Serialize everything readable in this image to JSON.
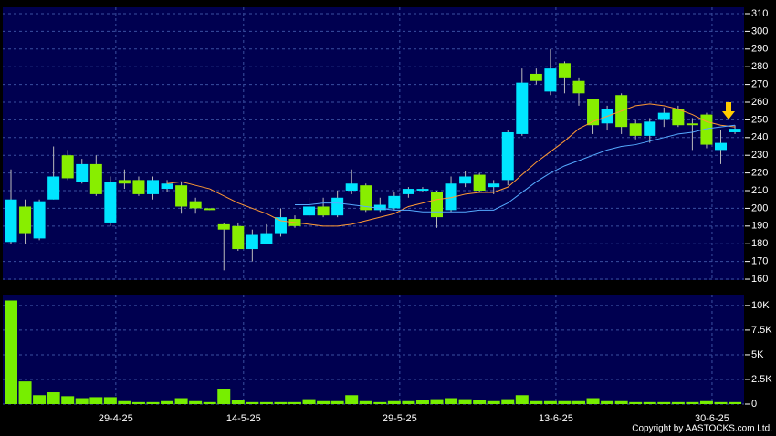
{
  "chart_data": [
    {
      "type": "candlestick",
      "open": [
        181,
        201,
        183,
        205,
        230,
        215,
        225,
        192,
        216,
        216,
        208,
        211,
        213,
        204,
        200,
        191,
        190,
        177,
        180,
        186,
        194,
        196,
        201,
        196,
        210,
        213,
        199,
        200,
        208,
        210,
        209,
        199,
        214,
        219,
        212,
        216,
        242,
        276,
        266,
        282,
        272,
        262,
        248,
        264,
        248,
        241,
        250,
        256,
        248,
        253,
        233,
        243
      ],
      "high": [
        222,
        205,
        205,
        235,
        233,
        228,
        230,
        218,
        222,
        218,
        218,
        216,
        215,
        206,
        200,
        192,
        192,
        188,
        191,
        200,
        196,
        206,
        206,
        210,
        222,
        214,
        206,
        209,
        212,
        212,
        210,
        218,
        221,
        220,
        216,
        244,
        279,
        279,
        290,
        283,
        274,
        262,
        258,
        265,
        250,
        251,
        257,
        258,
        251,
        254,
        244,
        247
      ],
      "low": [
        180,
        180,
        182,
        205,
        216,
        214,
        207,
        190,
        211,
        207,
        205,
        209,
        197,
        197,
        199,
        165,
        176,
        170,
        180,
        184,
        189,
        195,
        195,
        195,
        208,
        198,
        198,
        199,
        206,
        209,
        189,
        198,
        212,
        209,
        208,
        213,
        241,
        270,
        264,
        265,
        258,
        242,
        244,
        242,
        239,
        237,
        246,
        246,
        233,
        234,
        225,
        242
      ],
      "close": [
        205,
        186,
        204,
        218,
        217,
        225,
        208,
        215,
        214,
        208,
        216,
        214,
        201,
        200,
        199,
        188,
        177,
        185,
        186,
        195,
        190,
        201,
        196,
        206,
        214,
        199,
        202,
        207,
        211,
        211,
        195,
        214,
        218,
        210,
        214,
        243,
        271,
        272,
        279,
        274,
        265,
        247,
        256,
        246,
        241,
        249,
        254,
        247,
        247,
        236,
        237,
        245
      ],
      "up_color": "#00e5ff",
      "down_color": "#88ee00",
      "lines": [
        {
          "color": "#ff9933",
          "values": [
            null,
            null,
            null,
            null,
            null,
            null,
            null,
            null,
            null,
            null,
            null,
            214,
            215,
            213,
            211,
            207,
            203,
            200,
            197,
            193,
            192,
            191,
            190,
            190,
            191,
            193,
            195,
            197,
            201,
            203,
            205,
            206,
            208,
            209,
            209,
            212,
            219,
            226,
            232,
            238,
            245,
            249,
            252,
            255,
            258,
            259,
            258,
            256,
            253,
            249,
            247,
            246
          ]
        },
        {
          "color": "#55aaff",
          "values": [
            null,
            null,
            null,
            null,
            null,
            null,
            null,
            null,
            null,
            null,
            null,
            null,
            null,
            null,
            null,
            null,
            null,
            null,
            null,
            null,
            202,
            202,
            203,
            203,
            202,
            201,
            200,
            199,
            199,
            198,
            198,
            198,
            198,
            199,
            199,
            203,
            209,
            215,
            220,
            224,
            227,
            230,
            233,
            235,
            236,
            238,
            240,
            242,
            243,
            245,
            246,
            247
          ]
        }
      ],
      "ylim": [
        159.5,
        313.6
      ],
      "yticks": [
        160,
        170,
        180,
        190,
        200,
        210,
        220,
        230,
        240,
        250,
        260,
        270,
        280,
        290,
        300,
        310
      ],
      "grid": true
    },
    {
      "type": "bar",
      "categories": [
        null,
        null,
        null,
        null,
        null,
        null,
        null,
        "29-4-25",
        null,
        null,
        null,
        null,
        null,
        null,
        null,
        null,
        "14-5-25",
        null,
        null,
        null,
        null,
        null,
        null,
        null,
        null,
        null,
        null,
        "29-5-25",
        null,
        null,
        null,
        null,
        null,
        null,
        null,
        null,
        null,
        null,
        "13-6-25",
        null,
        null,
        null,
        null,
        null,
        null,
        null,
        null,
        null,
        null,
        "30-6-25",
        null,
        null
      ],
      "values": [
        10500,
        2300,
        900,
        1200,
        800,
        600,
        700,
        700,
        300,
        200,
        200,
        300,
        600,
        300,
        200,
        1500,
        400,
        200,
        200,
        200,
        200,
        500,
        300,
        300,
        900,
        300,
        200,
        300,
        300,
        400,
        500,
        600,
        500,
        400,
        300,
        500,
        900,
        300,
        300,
        300,
        300,
        600,
        300,
        300,
        200,
        200,
        200,
        200,
        200,
        300,
        200,
        200
      ],
      "color": "#77ee00",
      "ylim": [
        0,
        11100
      ],
      "yticks": [
        0,
        {
          "value": 2500,
          "label": "2.5K"
        },
        {
          "value": 5000,
          "label": "5K"
        },
        {
          "value": 7500,
          "label": "7.5K"
        },
        {
          "value": 10000,
          "label": "10K"
        }
      ],
      "grid": true
    }
  ],
  "copyright": "Copyright by AASTOCKS.com Ltd."
}
